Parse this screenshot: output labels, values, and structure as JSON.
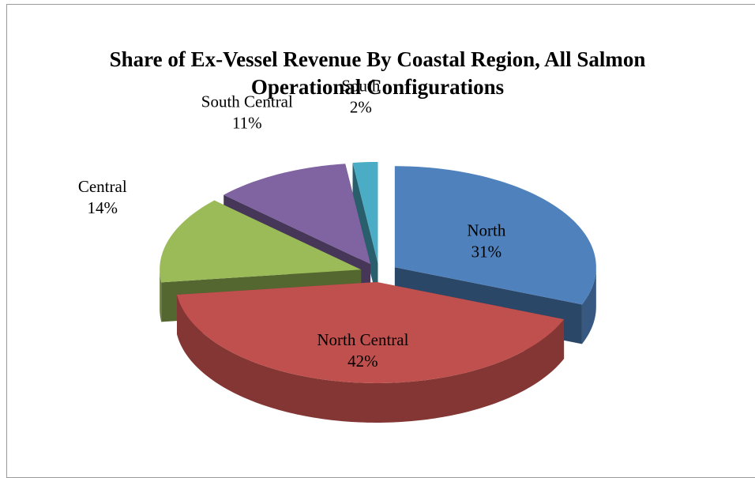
{
  "chart_data": {
    "type": "pie",
    "title": "Share of Ex-Vessel Revenue By Coastal Region, All Salmon Operational Configurations",
    "categories": [
      "North",
      "North Central",
      "Central",
      "South Central",
      "South"
    ],
    "values": [
      31,
      42,
      14,
      11,
      2
    ],
    "value_labels": [
      "31%",
      "42%",
      "14%",
      "11%",
      "2%"
    ],
    "colors": [
      "#4f81bd",
      "#c0504d",
      "#9bbb59",
      "#8064a2",
      "#4bacc6"
    ]
  }
}
